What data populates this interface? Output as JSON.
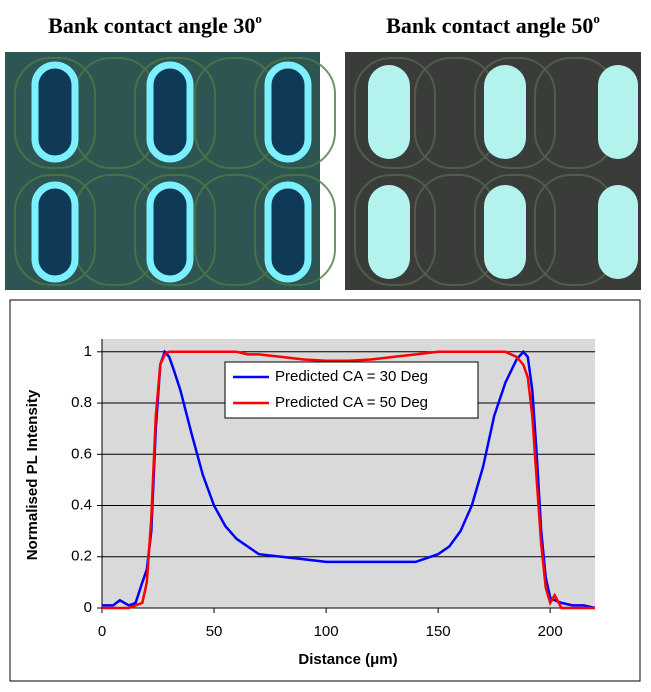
{
  "images": [
    {
      "title": "Bank contact angle 30",
      "superscript": "o"
    },
    {
      "title": "Bank contact angle 50",
      "superscript": "o"
    }
  ],
  "chart_data": {
    "type": "line",
    "x_label": "Distance (μm)",
    "y_label": "Normalised PL Intensity",
    "x": [
      0,
      5,
      8,
      12,
      15,
      18,
      20,
      22,
      24,
      26,
      28,
      30,
      32,
      35,
      40,
      45,
      50,
      55,
      60,
      65,
      70,
      80,
      90,
      100,
      110,
      120,
      130,
      140,
      150,
      155,
      160,
      165,
      170,
      175,
      180,
      185,
      188,
      190,
      192,
      194,
      196,
      198,
      200,
      202,
      205,
      210,
      215,
      220
    ],
    "series": [
      {
        "name": "Predicted CA = 30 Deg",
        "color": "#0000ff",
        "values": [
          0.01,
          0.01,
          0.03,
          0.01,
          0.02,
          0.1,
          0.15,
          0.3,
          0.7,
          0.95,
          1,
          0.98,
          0.93,
          0.85,
          0.68,
          0.52,
          0.4,
          0.32,
          0.27,
          0.24,
          0.21,
          0.2,
          0.19,
          0.18,
          0.18,
          0.18,
          0.18,
          0.18,
          0.21,
          0.24,
          0.3,
          0.4,
          0.55,
          0.75,
          0.88,
          0.97,
          1,
          0.98,
          0.85,
          0.6,
          0.3,
          0.12,
          0.04,
          0.03,
          0.02,
          0.01,
          0.01,
          0
        ]
      },
      {
        "name": "Predicted CA = 50 Deg",
        "color": "#ff0000",
        "values": [
          0,
          0,
          0,
          0,
          0.01,
          0.02,
          0.1,
          0.35,
          0.75,
          0.95,
          0.99,
          1,
          1,
          1,
          1,
          1,
          1,
          1,
          1,
          0.99,
          0.99,
          0.98,
          0.97,
          0.965,
          0.965,
          0.97,
          0.98,
          0.99,
          1,
          1,
          1,
          1,
          1,
          1,
          1,
          0.98,
          0.95,
          0.9,
          0.75,
          0.5,
          0.25,
          0.08,
          0.02,
          0.05,
          0,
          0,
          0,
          0
        ]
      }
    ],
    "xlim": [
      0,
      220
    ],
    "xticks": [
      0,
      50,
      100,
      150,
      200
    ],
    "ylim": [
      0,
      1.05
    ],
    "yticks": [
      0,
      0.2,
      0.4,
      0.6,
      0.8,
      1
    ],
    "grid": true,
    "legend": "top"
  }
}
